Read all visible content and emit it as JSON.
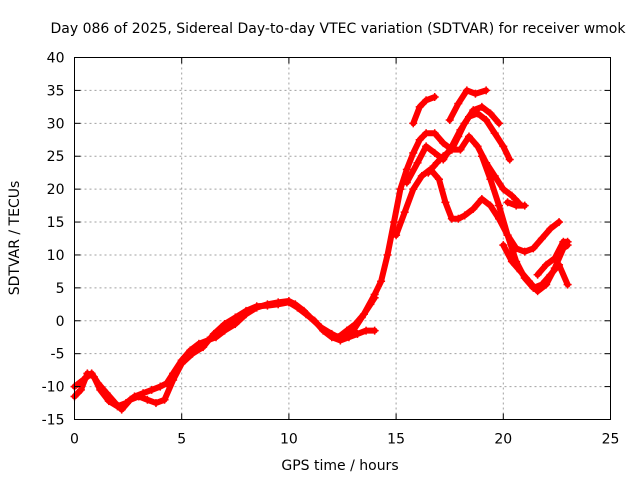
{
  "chart_data": {
    "type": "scatter",
    "title": "Day 086 of 2025, Sidereal Day-to-day VTEC variation (SDTVAR) for receiver wmok",
    "xlabel": "GPS time / hours",
    "ylabel": "SDTVAR / TECUs",
    "xlim": [
      0,
      25
    ],
    "ylim": [
      -15,
      40
    ],
    "xticks": [
      "0",
      "5",
      "10",
      "15",
      "20",
      "25"
    ],
    "yticks": [
      "-15",
      "-10",
      "-5",
      "0",
      "5",
      "10",
      "15",
      "20",
      "25",
      "30",
      "35",
      "40"
    ],
    "grid": true,
    "marker": "+",
    "color": "#ff0000",
    "series": [
      {
        "name": "track-1",
        "points": [
          [
            0.0,
            -11.5
          ],
          [
            0.3,
            -10.5
          ],
          [
            0.6,
            -8.0
          ],
          [
            0.9,
            -8.5
          ],
          [
            1.2,
            -10.5
          ],
          [
            1.6,
            -12.2
          ],
          [
            2.0,
            -13.0
          ],
          [
            2.4,
            -12.5
          ],
          [
            2.8,
            -11.5
          ],
          [
            3.2,
            -11.0
          ],
          [
            3.6,
            -10.5
          ],
          [
            4.0,
            -10.0
          ],
          [
            4.3,
            -9.5
          ],
          [
            4.6,
            -8.0
          ],
          [
            5.0,
            -6.0
          ],
          [
            5.4,
            -4.5
          ],
          [
            5.8,
            -3.5
          ],
          [
            6.2,
            -3.0
          ],
          [
            6.6,
            -2.5
          ],
          [
            7.0,
            -1.5
          ],
          [
            7.5,
            -0.5
          ],
          [
            8.0,
            1.0
          ],
          [
            8.5,
            2.0
          ],
          [
            9.0,
            2.5
          ],
          [
            9.5,
            2.8
          ],
          [
            10.0,
            3.0
          ],
          [
            10.3,
            2.5
          ],
          [
            10.7,
            1.5
          ],
          [
            11.0,
            0.5
          ],
          [
            11.5,
            -1.0
          ],
          [
            12.0,
            -2.0
          ],
          [
            12.3,
            -2.5
          ],
          [
            12.7,
            -1.5
          ],
          [
            13.1,
            -0.5
          ],
          [
            13.5,
            1.0
          ],
          [
            14.0,
            4.0
          ],
          [
            14.3,
            6.0
          ],
          [
            14.6,
            10.0
          ],
          [
            14.9,
            15.0
          ],
          [
            15.2,
            20.0
          ],
          [
            15.5,
            23.0
          ],
          [
            15.8,
            25.5
          ],
          [
            16.1,
            27.5
          ],
          [
            16.4,
            28.5
          ],
          [
            16.8,
            28.5
          ],
          [
            17.2,
            27.0
          ],
          [
            17.6,
            26.0
          ],
          [
            18.0,
            26.0
          ],
          [
            18.4,
            28.0
          ],
          [
            18.8,
            26.5
          ],
          [
            19.2,
            24.0
          ],
          [
            19.6,
            22.0
          ],
          [
            20.0,
            20.0
          ],
          [
            20.4,
            19.0
          ],
          [
            20.7,
            18.0
          ]
        ]
      },
      {
        "name": "track-2",
        "points": [
          [
            0.0,
            -10.0
          ],
          [
            0.4,
            -9.0
          ],
          [
            0.8,
            -8.0
          ],
          [
            1.1,
            -9.5
          ],
          [
            1.5,
            -11.0
          ],
          [
            1.9,
            -12.5
          ],
          [
            2.2,
            -13.5
          ],
          [
            2.6,
            -12.0
          ],
          [
            3.0,
            -11.5
          ],
          [
            3.4,
            -12.0
          ],
          [
            3.8,
            -12.5
          ],
          [
            4.2,
            -12.0
          ],
          [
            4.6,
            -9.0
          ],
          [
            5.0,
            -6.5
          ],
          [
            5.5,
            -5.0
          ],
          [
            6.0,
            -4.0
          ],
          [
            6.5,
            -2.0
          ],
          [
            7.0,
            -0.5
          ],
          [
            7.5,
            0.5
          ],
          [
            8.0,
            1.5
          ],
          [
            8.5,
            2.2
          ],
          [
            9.0,
            2.3
          ],
          [
            9.5,
            2.5
          ],
          [
            10.0,
            2.8
          ],
          [
            10.4,
            2.0
          ],
          [
            10.8,
            1.0
          ],
          [
            11.2,
            0.0
          ],
          [
            11.6,
            -1.5
          ],
          [
            12.0,
            -2.5
          ],
          [
            12.4,
            -3.0
          ],
          [
            12.8,
            -2.5
          ],
          [
            13.2,
            -2.0
          ],
          [
            13.6,
            -1.5
          ],
          [
            14.0,
            -1.5
          ]
        ]
      },
      {
        "name": "track-3",
        "points": [
          [
            12.5,
            -2.5
          ],
          [
            13.0,
            -1.5
          ],
          [
            13.4,
            0.5
          ],
          [
            13.8,
            2.5
          ],
          [
            14.0,
            3.5
          ]
        ]
      },
      {
        "name": "track-4",
        "points": [
          [
            15.0,
            13.0
          ],
          [
            15.4,
            16.5
          ],
          [
            15.8,
            20.0
          ],
          [
            16.2,
            22.0
          ],
          [
            16.6,
            23.0
          ],
          [
            17.0,
            21.5
          ],
          [
            17.3,
            18.0
          ],
          [
            17.6,
            15.5
          ],
          [
            17.9,
            15.5
          ],
          [
            18.2,
            16.0
          ],
          [
            18.6,
            17.0
          ],
          [
            19.0,
            18.5
          ],
          [
            19.4,
            17.5
          ],
          [
            19.8,
            15.5
          ],
          [
            20.2,
            13.0
          ],
          [
            20.6,
            11.0
          ],
          [
            21.0,
            10.5
          ],
          [
            21.4,
            11.0
          ],
          [
            21.8,
            12.5
          ],
          [
            22.2,
            14.0
          ],
          [
            22.6,
            15.0
          ]
        ]
      },
      {
        "name": "track-5",
        "points": [
          [
            15.5,
            21.0
          ],
          [
            16.0,
            24.0
          ],
          [
            16.4,
            26.5
          ],
          [
            16.8,
            25.5
          ],
          [
            17.2,
            24.5
          ],
          [
            17.6,
            26.5
          ],
          [
            18.0,
            29.0
          ],
          [
            18.4,
            31.0
          ],
          [
            18.8,
            31.5
          ],
          [
            19.2,
            30.5
          ],
          [
            19.6,
            28.5
          ],
          [
            20.0,
            26.5
          ],
          [
            20.3,
            24.5
          ]
        ]
      },
      {
        "name": "track-6",
        "points": [
          [
            15.8,
            30.0
          ],
          [
            16.1,
            32.5
          ],
          [
            16.4,
            33.5
          ],
          [
            16.8,
            34.0
          ]
        ]
      },
      {
        "name": "track-7",
        "points": [
          [
            17.5,
            30.5
          ],
          [
            17.9,
            33.0
          ],
          [
            18.3,
            35.0
          ],
          [
            18.7,
            34.5
          ],
          [
            19.2,
            35.0
          ]
        ]
      },
      {
        "name": "track-8",
        "points": [
          [
            19.0,
            25.0
          ],
          [
            19.4,
            21.5
          ],
          [
            19.8,
            17.5
          ],
          [
            20.2,
            13.0
          ],
          [
            20.6,
            9.0
          ],
          [
            21.0,
            6.5
          ],
          [
            21.4,
            5.0
          ],
          [
            21.8,
            5.5
          ],
          [
            22.2,
            7.0
          ],
          [
            22.6,
            8.5
          ],
          [
            23.0,
            5.5
          ]
        ]
      },
      {
        "name": "track-9",
        "points": [
          [
            20.0,
            11.5
          ],
          [
            20.4,
            9.0
          ],
          [
            20.8,
            7.5
          ],
          [
            21.2,
            6.0
          ],
          [
            21.6,
            4.5
          ],
          [
            22.0,
            5.5
          ],
          [
            22.4,
            8.0
          ],
          [
            22.8,
            11.0
          ],
          [
            23.0,
            11.5
          ]
        ]
      },
      {
        "name": "track-10",
        "points": [
          [
            21.6,
            7.0
          ],
          [
            22.0,
            8.5
          ],
          [
            22.4,
            9.5
          ],
          [
            22.8,
            12.0
          ],
          [
            23.0,
            12.0
          ]
        ]
      },
      {
        "name": "track-11",
        "points": [
          [
            20.2,
            18.0
          ],
          [
            20.6,
            17.5
          ],
          [
            21.0,
            17.5
          ]
        ]
      },
      {
        "name": "track-12",
        "points": [
          [
            16.5,
            22.5
          ],
          [
            16.9,
            24.0
          ],
          [
            17.2,
            25.0
          ],
          [
            17.6,
            26.0
          ],
          [
            17.9,
            28.0
          ],
          [
            18.2,
            30.0
          ],
          [
            18.6,
            32.0
          ],
          [
            19.0,
            32.5
          ],
          [
            19.4,
            31.5
          ],
          [
            19.8,
            30.0
          ]
        ]
      }
    ]
  }
}
